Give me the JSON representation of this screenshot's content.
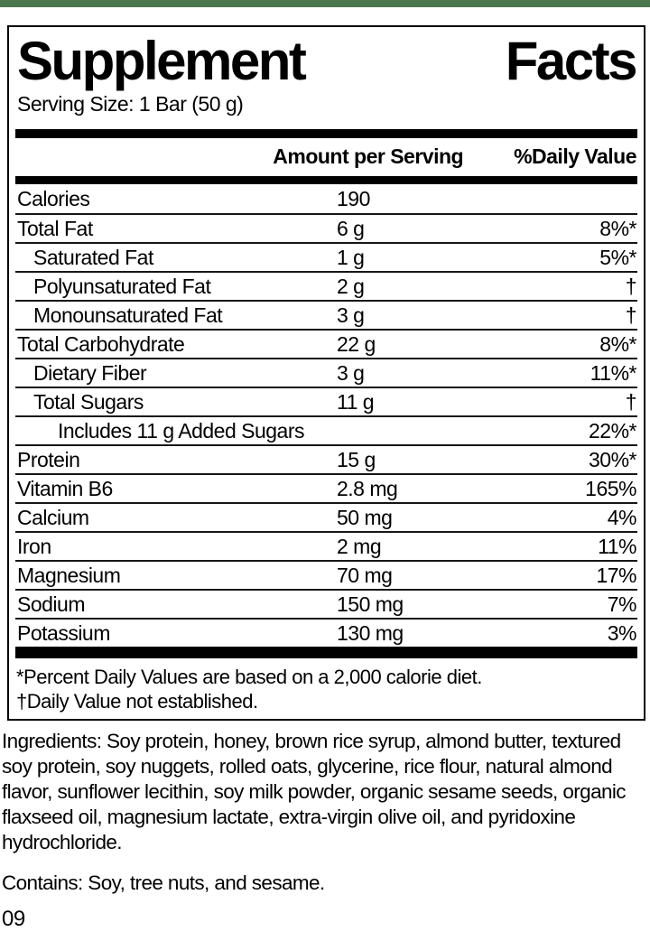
{
  "colors": {
    "header_strip": "#4b774f",
    "text": "#000000",
    "background": "#ffffff"
  },
  "label": {
    "title_word1": "Supplement",
    "title_word2": "Facts",
    "serving_size": "Serving Size: 1 Bar (50 g)",
    "columns": {
      "amount": "Amount per Serving",
      "dv": "%Daily Value"
    },
    "rows": [
      {
        "name": "Calories",
        "amount": "190",
        "dv": "",
        "indent": 0
      },
      {
        "name": "Total Fat",
        "amount": "6 g",
        "dv": "8%*",
        "indent": 0
      },
      {
        "name": "Saturated Fat",
        "amount": "1 g",
        "dv": "5%*",
        "indent": 1
      },
      {
        "name": "Polyunsaturated Fat",
        "amount": "2 g",
        "dv": "†",
        "indent": 1
      },
      {
        "name": "Monounsaturated Fat",
        "amount": "3 g",
        "dv": "†",
        "indent": 1
      },
      {
        "name": "Total Carbohydrate",
        "amount": "22 g",
        "dv": "8%*",
        "indent": 0
      },
      {
        "name": "Dietary Fiber",
        "amount": "3 g",
        "dv": "11%*",
        "indent": 1
      },
      {
        "name": "Total Sugars",
        "amount": "11 g",
        "dv": "†",
        "indent": 1
      },
      {
        "name": "Includes 11 g Added Sugars",
        "amount": "",
        "dv": "22%*",
        "indent": 2
      },
      {
        "name": "Protein",
        "amount": "15 g",
        "dv": "30%*",
        "indent": 0
      },
      {
        "name": "Vitamin B6",
        "amount": "2.8 mg",
        "dv": "165%",
        "indent": 0
      },
      {
        "name": "Calcium",
        "amount": "50 mg",
        "dv": "4%",
        "indent": 0
      },
      {
        "name": "Iron",
        "amount": "2 mg",
        "dv": "11%",
        "indent": 0
      },
      {
        "name": "Magnesium",
        "amount": "70 mg",
        "dv": "17%",
        "indent": 0
      },
      {
        "name": "Sodium",
        "amount": "150 mg",
        "dv": "7%",
        "indent": 0
      },
      {
        "name": "Potassium",
        "amount": "130 mg",
        "dv": "3%",
        "indent": 0
      }
    ],
    "footnotes": [
      "*Percent Daily Values are based on a 2,000 calorie diet.",
      "†Daily Value not established."
    ]
  },
  "ingredients": "Ingredients: Soy protein, honey, brown rice syrup, almond butter, textured soy protein, soy nuggets, rolled oats, glycerine, rice flour, natural almond flavor, sunflower lecithin, soy milk powder, organic sesame seeds, organic flaxseed oil, magnesium lactate, extra-virgin olive oil, and pyridoxine hydrochloride.",
  "contains": "Contains: Soy, tree nuts, and sesame.",
  "footer_code": "09"
}
